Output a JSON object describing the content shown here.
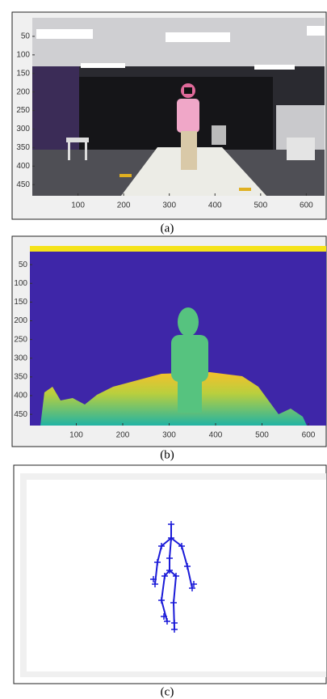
{
  "panels": [
    {
      "caption": "(a)",
      "xlim": [
        0,
        640
      ],
      "ylim": [
        0,
        480
      ],
      "xticks": [
        100,
        200,
        300,
        400,
        500,
        600
      ],
      "yticks": [
        50,
        100,
        150,
        200,
        250,
        300,
        350,
        400,
        450
      ]
    },
    {
      "caption": "(b)",
      "xlim": [
        0,
        640
      ],
      "ylim": [
        0,
        480
      ],
      "xticks": [
        100,
        200,
        300,
        400,
        500,
        600
      ],
      "yticks": [
        50,
        100,
        150,
        200,
        250,
        300,
        350,
        400,
        450
      ]
    },
    {
      "caption": "(c)"
    }
  ]
}
